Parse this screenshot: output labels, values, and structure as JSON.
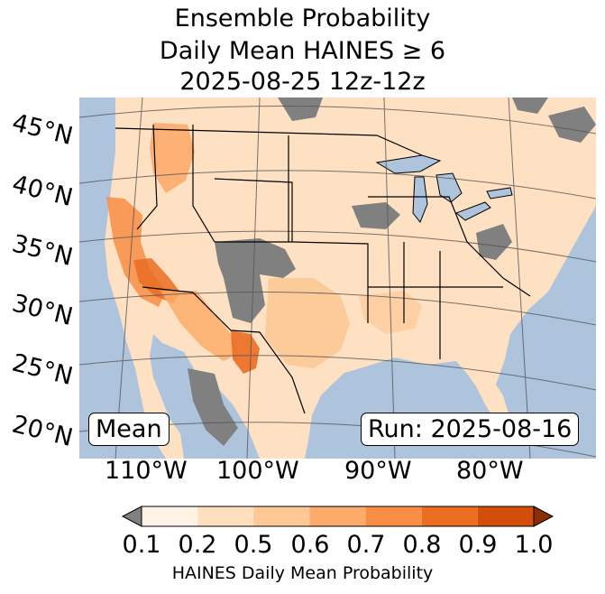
{
  "title": {
    "line1": "Ensemble Probability",
    "line2": "Daily Mean HAINES ≥ 6",
    "line3": "2025-08-25 12z-12z"
  },
  "map": {
    "lat_labels": [
      "45°N",
      "40°N",
      "35°N",
      "30°N",
      "25°N",
      "20°N"
    ],
    "lon_labels": [
      "110°W",
      "100°W",
      "90°W",
      "80°W"
    ],
    "stat_label": "Mean",
    "run_label": "Run: 2025-08-16",
    "colors": {
      "ocean": "#aec4dd",
      "lake": "#aec4dd",
      "missing": "#808080",
      "border": "#000000",
      "grid": "#555555"
    }
  },
  "colorbar": {
    "ticks": [
      "0.1",
      "0.2",
      "0.5",
      "0.6",
      "0.7",
      "0.8",
      "0.9",
      "1.0"
    ],
    "colors": [
      "#fff3e6",
      "#fee0c0",
      "#fdc895",
      "#fdab6a",
      "#f88e45",
      "#ea6d22",
      "#d34e0a"
    ],
    "under_color": "#808080",
    "over_color": "#8c2d04",
    "label": "HAINES Daily Mean Probability"
  }
}
